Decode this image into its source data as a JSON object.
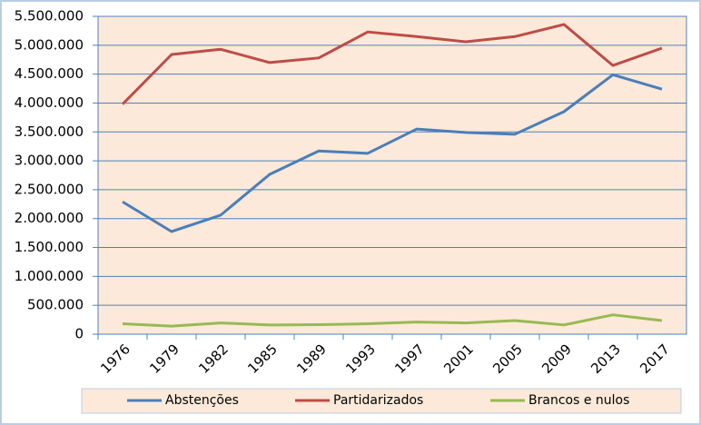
{
  "chart_data": {
    "type": "line",
    "categories": [
      "1976",
      "1979",
      "1982",
      "1985",
      "1989",
      "1993",
      "1997",
      "2001",
      "2005",
      "2009",
      "2013",
      "2017"
    ],
    "series": [
      {
        "name": "Abstenções",
        "color": "#4a7ebb",
        "values": [
          2290000,
          1776000,
          2060000,
          2766000,
          3170000,
          3130000,
          3550000,
          3490000,
          3460000,
          3850000,
          4490000,
          4240000
        ]
      },
      {
        "name": "Partidarizados",
        "color": "#be4b48",
        "values": [
          3980000,
          4840000,
          4930000,
          4700000,
          4780000,
          5230000,
          5150000,
          5060000,
          5150000,
          5360000,
          4650000,
          4950000
        ]
      },
      {
        "name": "Brancos e nulos",
        "color": "#98b954",
        "values": [
          180000,
          140000,
          195000,
          160000,
          165000,
          180000,
          210000,
          195000,
          235000,
          160000,
          335000,
          235000
        ]
      }
    ],
    "ylim": [
      0,
      5500000
    ],
    "yticks": [
      0,
      {
        "value": 500000,
        "label": "500.000"
      },
      {
        "value": 1000000,
        "label": "1.000.000"
      },
      {
        "value": 1500000,
        "label": "1.500.000"
      },
      {
        "value": 2000000,
        "label": "2.000.000"
      },
      {
        "value": 2500000,
        "label": "2.500.000"
      },
      {
        "value": 3000000,
        "label": "3.000.000"
      },
      {
        "value": 3500000,
        "label": "3.500.000"
      },
      {
        "value": 4000000,
        "label": "4.000.000"
      },
      {
        "value": 4500000,
        "label": "4.500.000"
      },
      {
        "value": 5000000,
        "label": "5.000.000"
      },
      {
        "value": 5500000,
        "label": "5.500.000"
      }
    ],
    "grid": true,
    "legend": "bottom"
  }
}
